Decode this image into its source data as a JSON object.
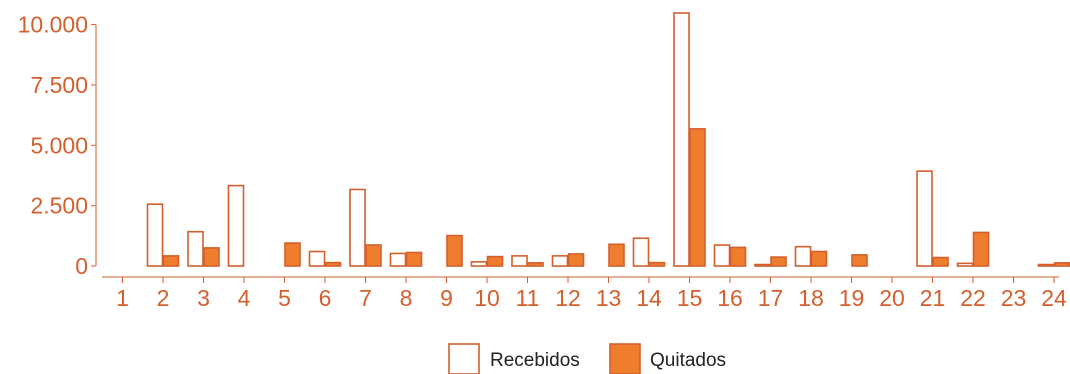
{
  "colors": {
    "accent": "#d35f2d",
    "fill_quitados": "#ef7d2e",
    "fill_recebidos": "#ffffff"
  },
  "chart_data": {
    "type": "bar",
    "categories": [
      "1",
      "2",
      "3",
      "4",
      "5",
      "6",
      "7",
      "8",
      "9",
      "10",
      "11",
      "12",
      "13",
      "14",
      "15",
      "16",
      "17",
      "18",
      "19",
      "20",
      "21",
      "22",
      "23",
      "24"
    ],
    "series": [
      {
        "name": "Recebidos",
        "values": [
          0,
          2560,
          1420,
          3330,
          0,
          600,
          3170,
          520,
          0,
          170,
          420,
          420,
          0,
          1150,
          10480,
          870,
          60,
          800,
          0,
          0,
          3930,
          110,
          0,
          60
        ]
      },
      {
        "name": "Quitados",
        "values": [
          0,
          420,
          750,
          0,
          950,
          140,
          870,
          560,
          1260,
          390,
          130,
          500,
          900,
          140,
          5680,
          770,
          370,
          600,
          460,
          0,
          350,
          1390,
          0,
          130
        ]
      }
    ],
    "yticks": [
      0,
      2500,
      5000,
      7500,
      10000
    ],
    "ytick_labels": [
      "0",
      "2.500",
      "5.000",
      "7.500",
      "10.000"
    ],
    "ylim": [
      0,
      10480
    ],
    "xlabel": "",
    "ylabel": "",
    "title": "",
    "grid": false,
    "legend_position": "bottom"
  }
}
